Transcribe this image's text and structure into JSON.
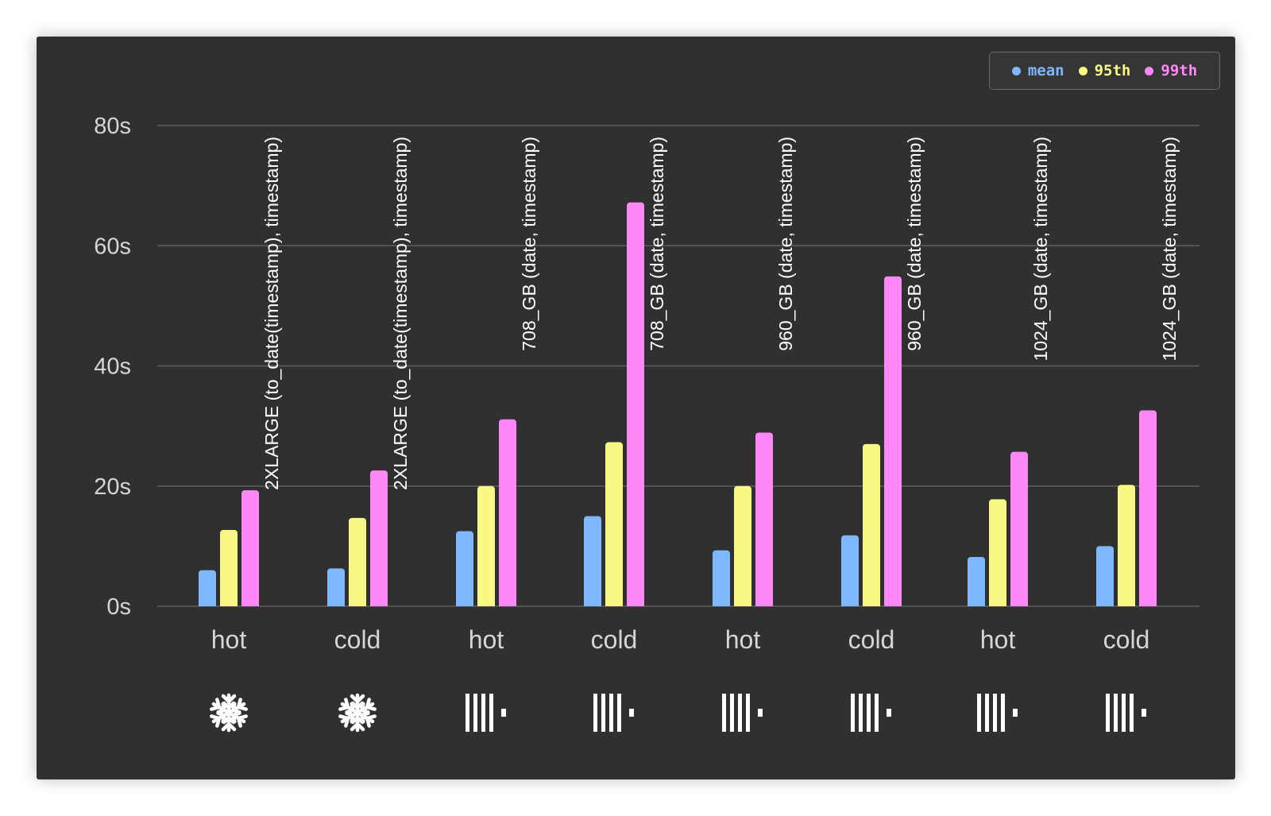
{
  "colors": {
    "mean": "#7fb8ff",
    "p95": "#faf884",
    "p99": "#ff88f8",
    "grid": "#5e5e5e",
    "text": "#d6d6d6",
    "white": "#ffffff"
  },
  "legend": {
    "mean": "mean",
    "p95": "95th",
    "p99": "99th"
  },
  "chart_data": {
    "type": "bar",
    "y_ticks": [
      "0s",
      "20s",
      "40s",
      "60s",
      "80s"
    ],
    "ylim": [
      0,
      80
    ],
    "grid": true,
    "legend_position": "top-right",
    "categories": [
      "hot",
      "cold",
      "hot",
      "cold",
      "hot",
      "cold",
      "hot",
      "cold"
    ],
    "annotations": [
      "2XLARGE (to_date(timestamp), timestamp)",
      "2XLARGE (to_date(timestamp), timestamp)",
      "708_GB (date, timestamp)",
      "708_GB (date, timestamp)",
      "960_GB (date, timestamp)",
      "960_GB (date, timestamp)",
      "1024_GB (date, timestamp)",
      "1024_GB (date, timestamp)"
    ],
    "group_icons": [
      "snowflake-icon",
      "snowflake-icon",
      "barcode-icon",
      "barcode-icon",
      "barcode-icon",
      "barcode-icon",
      "barcode-icon",
      "barcode-icon"
    ],
    "series": [
      {
        "name": "mean",
        "values": [
          6,
          6.3,
          12.5,
          15,
          9.3,
          11.8,
          8.2,
          10
        ]
      },
      {
        "name": "95th",
        "values": [
          12.7,
          14.7,
          20,
          27.3,
          20,
          27,
          17.8,
          20.2
        ]
      },
      {
        "name": "99th",
        "values": [
          19.3,
          22.6,
          31.1,
          67.2,
          28.9,
          54.9,
          25.7,
          32.6
        ]
      }
    ]
  }
}
